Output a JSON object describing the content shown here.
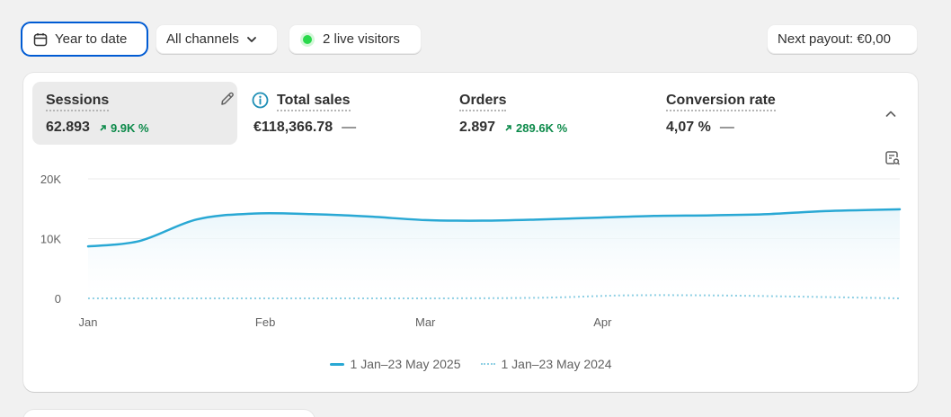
{
  "toolbar": {
    "date_range": "Year to date",
    "channels": "All channels",
    "live_visitors": "2 live visitors",
    "next_payout": "Next payout: €0,00"
  },
  "metrics": [
    {
      "label": "Sessions",
      "value": "62.893",
      "change": "9.9K %",
      "selected": true
    },
    {
      "label": "Total sales",
      "value": "€118,366.78",
      "change": "—"
    },
    {
      "label": "Orders",
      "value": "2.897",
      "change": "289.6K %"
    },
    {
      "label": "Conversion rate",
      "value": "4,07 %",
      "change": "—"
    }
  ],
  "colors": {
    "primary_series": "#29a8d4",
    "comparison_series": "#8fd0e4",
    "positive": "#0c8a4a",
    "live_dot": "#29d94b",
    "focus": "#005bd3"
  },
  "icons": [
    "calendar-icon",
    "chevron-down-icon",
    "pencil-icon",
    "info-icon",
    "chevron-up-icon",
    "chart-search-icon",
    "arrow-up-right-icon"
  ],
  "chart_data": {
    "type": "area",
    "x_tick_labels": [
      "Jan",
      "Feb",
      "Mar",
      "Apr"
    ],
    "y_tick_labels": [
      "20K",
      "10K",
      "0"
    ],
    "ylim": [
      0,
      20000
    ],
    "xlim_days": [
      1,
      143
    ],
    "grid": true,
    "legend_position": "bottom-center",
    "series": [
      {
        "name": "1 Jan–23 May 2025",
        "style": "solid",
        "x": [
          1,
          10,
          20,
          30,
          40,
          50,
          60,
          70,
          80,
          90,
          100,
          110,
          120,
          130,
          143
        ],
        "y": [
          8700,
          9600,
          13200,
          14200,
          14100,
          13700,
          13100,
          13000,
          13200,
          13500,
          13800,
          13900,
          14100,
          14600,
          14900
        ]
      },
      {
        "name": "1 Jan–23 May 2024",
        "style": "dotted",
        "x": [
          1,
          20,
          40,
          60,
          80,
          95,
          110,
          125,
          143
        ],
        "y": [
          0,
          0,
          0,
          0,
          100,
          500,
          500,
          300,
          0
        ]
      }
    ]
  }
}
